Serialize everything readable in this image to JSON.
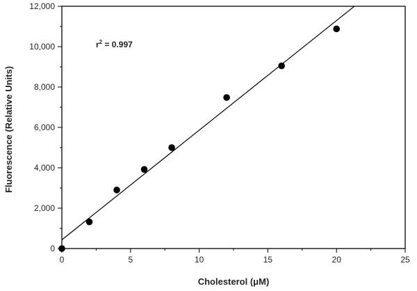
{
  "chart_data": {
    "type": "scatter",
    "xlabel": "Cholesterol (μM)",
    "ylabel": "Fluorescence (Relative Units)",
    "xlim": [
      0,
      25
    ],
    "ylim": [
      0,
      12000
    ],
    "xticks": [
      0,
      5,
      10,
      15,
      20,
      25
    ],
    "xtick_labels": [
      "0",
      "5",
      "10",
      "15",
      "20",
      "25"
    ],
    "yticks": [
      0,
      2000,
      4000,
      6000,
      8000,
      10000,
      12000
    ],
    "ytick_labels": [
      "0",
      "2,000",
      "4,000",
      "6,000",
      "8,000",
      "10,000",
      "12,000"
    ],
    "grid": false,
    "points": [
      {
        "x": 0,
        "y": 0
      },
      {
        "x": 2,
        "y": 1320
      },
      {
        "x": 4,
        "y": 2900
      },
      {
        "x": 6,
        "y": 3920
      },
      {
        "x": 8,
        "y": 5000
      },
      {
        "x": 12,
        "y": 7480
      },
      {
        "x": 16,
        "y": 9050
      },
      {
        "x": 20,
        "y": 10880
      }
    ],
    "fit_line": {
      "x": [
        0,
        21.3
      ],
      "y": [
        430,
        12000
      ]
    },
    "annotation": {
      "text": "r",
      "superscript": "2",
      "value_text": " = 0.997"
    }
  }
}
